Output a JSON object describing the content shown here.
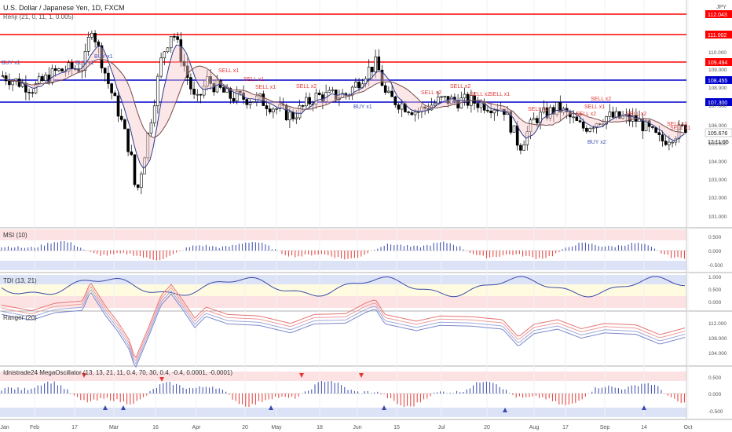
{
  "header": {
    "symbol_title": "U.S. Dollar / Japanese Yen, 1D, FXCM",
    "currency": "JPY",
    "indicator_label": "Renji (21, 0, 11, 1, 0.005)"
  },
  "price_axis": {
    "ticks": [
      "110.000",
      "109.000",
      "108.000",
      "107.000",
      "106.000",
      "105.000",
      "104.000",
      "103.000",
      "102.000",
      "101.000"
    ],
    "current_price": "105.676",
    "countdown": "12:11:55"
  },
  "levels": [
    {
      "value": "112.043",
      "kind": "resistance",
      "color": "#ff0000"
    },
    {
      "value": "111.002",
      "kind": "resistance",
      "color": "#ff0000"
    },
    {
      "value": "109.494",
      "kind": "resistance",
      "color": "#ff0000"
    },
    {
      "value": "108.455",
      "kind": "support",
      "color": "#0000cc"
    },
    {
      "value": "107.300",
      "kind": "support",
      "color": "#0000cc"
    }
  ],
  "signals": [
    {
      "text": "BUY x1",
      "type": "buy"
    },
    {
      "text": "BUY x1",
      "type": "buy"
    },
    {
      "text": "BUY x1",
      "type": "buy"
    },
    {
      "text": "SELL x1",
      "type": "sell"
    },
    {
      "text": "SELL x1",
      "type": "sell"
    },
    {
      "text": "SELL x1",
      "type": "sell"
    },
    {
      "text": "SELL x2",
      "type": "sell"
    },
    {
      "text": "BUY x1",
      "type": "buy"
    },
    {
      "text": "SELL x2",
      "type": "sell"
    },
    {
      "text": "SELL x2",
      "type": "sell"
    },
    {
      "text": "SELL x2",
      "type": "sell"
    },
    {
      "text": "SELL x1",
      "type": "sell"
    },
    {
      "text": "SELL x1",
      "type": "sell"
    },
    {
      "text": "SELL x2",
      "type": "sell"
    },
    {
      "text": "SELL x1",
      "type": "sell"
    },
    {
      "text": "SELL x2",
      "type": "sell"
    },
    {
      "text": "BUY x2",
      "type": "buy"
    },
    {
      "text": "SELL x2",
      "type": "sell"
    },
    {
      "text": "SELL x2",
      "type": "sell"
    },
    {
      "text": "SELL x1",
      "type": "sell"
    }
  ],
  "panels": {
    "msi": {
      "label": "MSI (10)",
      "ticks": [
        "0.500",
        "0.000",
        "-0.500"
      ]
    },
    "tdi": {
      "label": "TDI (13, 21)",
      "ticks": [
        "1.000",
        "0.500",
        "0.000"
      ]
    },
    "ranger": {
      "label": "Ranger (20)",
      "ticks": [
        "112.000",
        "108.000",
        "104.000"
      ]
    },
    "mega": {
      "label": "Idnistrade24 MegaOscillator (13, 13, 21, 11, 0.4, 70, 30, 0.4, -0.4, 0.0001, -0.0001)",
      "ticks": [
        "0.500",
        "0.000",
        "-0.500"
      ]
    }
  },
  "time_axis": [
    "Jan",
    "Feb",
    "17",
    "Mar",
    "16",
    "Apr",
    "20",
    "May",
    "18",
    "Jun",
    "15",
    "Jul",
    "20",
    "Aug",
    "17",
    "Sep",
    "14",
    "Oct"
  ],
  "colors": {
    "bull": "#ffffff",
    "bear": "#000000",
    "red": "#ff0000",
    "blue": "#0000cc",
    "sell_text": "#e53935",
    "buy_text": "#3f51b5",
    "panel_red_bg": "#fde2e4",
    "panel_blue_bg": "#dde3f7",
    "panel_yellow_bg": "#fffbe0"
  }
}
